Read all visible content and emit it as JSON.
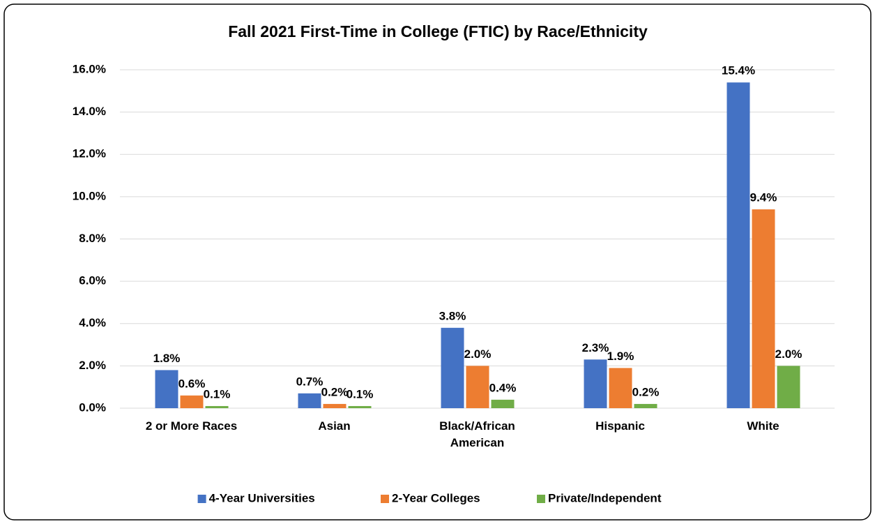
{
  "chart_data": {
    "type": "bar",
    "title": "Fall 2021 First-Time in College (FTIC) by Race/Ethnicity",
    "categories": [
      "2 or More Races",
      "Asian",
      "Black/African American",
      "Hispanic",
      "White"
    ],
    "series": [
      {
        "name": "4-Year Universities",
        "color": "#4472c4",
        "values": [
          1.8,
          0.7,
          3.8,
          2.3,
          15.4
        ],
        "value_labels": [
          "1.8%",
          "0.7%",
          "3.8%",
          "2.3%",
          "15.4%"
        ]
      },
      {
        "name": "2-Year Colleges",
        "color": "#ed7d31",
        "values": [
          0.6,
          0.2,
          2.0,
          1.9,
          9.4
        ],
        "value_labels": [
          "0.6%",
          "0.2%",
          "2.0%",
          "1.9%",
          "9.4%"
        ]
      },
      {
        "name": "Private/Independent",
        "color": "#70ad47",
        "values": [
          0.1,
          0.1,
          0.4,
          0.2,
          2.0
        ],
        "value_labels": [
          "0.1%",
          "0.1%",
          "0.4%",
          "0.2%",
          "2.0%"
        ]
      }
    ],
    "ylim": [
      0,
      16
    ],
    "yticks": [
      {
        "value": 0,
        "label": "0.0%"
      },
      {
        "value": 2,
        "label": "2.0%"
      },
      {
        "value": 4,
        "label": "4.0%"
      },
      {
        "value": 6,
        "label": "6.0%"
      },
      {
        "value": 8,
        "label": "8.0%"
      },
      {
        "value": 10,
        "label": "10.0%"
      },
      {
        "value": 12,
        "label": "12.0%"
      },
      {
        "value": 14,
        "label": "14.0%"
      },
      {
        "value": 16,
        "label": "16.0%"
      }
    ],
    "grid": true,
    "legend": "bottom"
  }
}
